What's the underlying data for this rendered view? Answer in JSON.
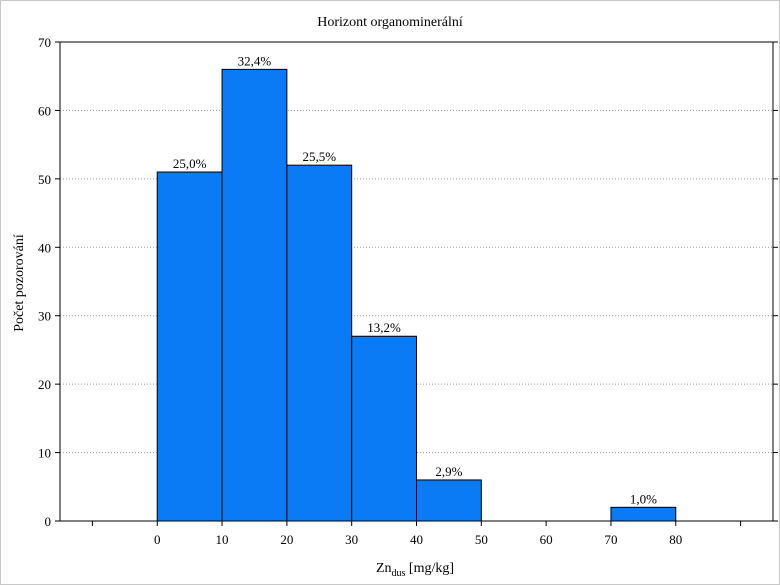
{
  "chart_data": {
    "type": "bar",
    "title": "Horizont organominerální",
    "xlabel_main": "Zn",
    "xlabel_sub": "dus",
    "xlabel_unit": " [mg/kg]",
    "ylabel": "Počet pozorování",
    "bins": [
      {
        "x0": 0,
        "x1": 10,
        "value": 51,
        "label": "25,0%"
      },
      {
        "x0": 10,
        "x1": 20,
        "value": 66,
        "label": "32,4%"
      },
      {
        "x0": 20,
        "x1": 30,
        "value": 52,
        "label": "25,5%"
      },
      {
        "x0": 30,
        "x1": 40,
        "value": 27,
        "label": "13,2%"
      },
      {
        "x0": 40,
        "x1": 50,
        "value": 6,
        "label": "2,9%"
      },
      {
        "x0": 70,
        "x1": 80,
        "value": 2,
        "label": "1,0%"
      }
    ],
    "xlim": [
      -15,
      95
    ],
    "ylim": [
      0,
      70
    ],
    "xticks": [
      -10,
      0,
      10,
      20,
      30,
      40,
      50,
      60,
      70,
      80,
      90
    ],
    "xtick_labels": [
      "",
      "0",
      "10",
      "20",
      "30",
      "40",
      "50",
      "60",
      "70",
      "80",
      ""
    ],
    "yticks": [
      0,
      10,
      20,
      30,
      40,
      50,
      60,
      70
    ],
    "ytick_labels": [
      "0",
      "10",
      "20",
      "30",
      "40",
      "50",
      "60",
      "70"
    ],
    "grid": "horizontal-dotted",
    "bar_color": "#0a7af5",
    "legend": "none"
  }
}
